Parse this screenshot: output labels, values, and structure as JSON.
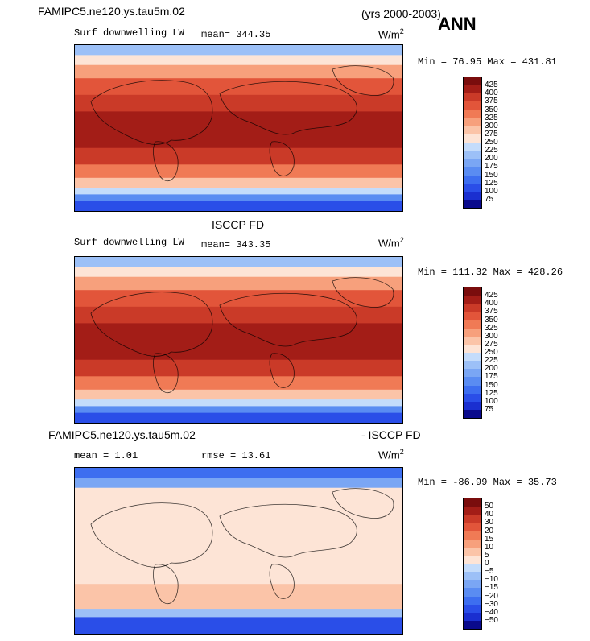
{
  "header": {
    "case_name": "FAMIPC5.ne120.ys.tau5m.02",
    "years": "(yrs 2000-2003)",
    "season": "ANN"
  },
  "panels": [
    {
      "title": "",
      "variable": "Surf downwelling LW",
      "stat_line": "mean= 344.35",
      "units_base": "W/m",
      "units_exp": "2",
      "minmax": "Min =  76.95 Max = 431.81",
      "colorbar_labels": [
        "425",
        "400",
        "375",
        "350",
        "325",
        "300",
        "275",
        "250",
        "225",
        "200",
        "175",
        "150",
        "125",
        "100",
        "75"
      ]
    },
    {
      "title": "ISCCP FD",
      "variable": "Surf downwelling LW",
      "stat_line": "mean= 343.35",
      "units_base": "W/m",
      "units_exp": "2",
      "minmax": "Min = 111.32 Max = 428.26",
      "colorbar_labels": [
        "425",
        "400",
        "375",
        "350",
        "325",
        "300",
        "275",
        "250",
        "225",
        "200",
        "175",
        "150",
        "125",
        "100",
        "75"
      ]
    },
    {
      "title_left": "FAMIPC5.ne120.ys.tau5m.02",
      "title_right": "- ISCCP FD",
      "mean_line": "mean =    1.01",
      "rmse_line": "rmse =   13.61",
      "units_base": "W/m",
      "units_exp": "2",
      "minmax": "Min = -86.99 Max =  35.73",
      "colorbar_labels": [
        "50",
        "40",
        "30",
        "20",
        "15",
        "10",
        "5",
        "0",
        "−5",
        "−10",
        "−15",
        "−20",
        "−30",
        "−40",
        "−50"
      ]
    }
  ],
  "chart_data": [
    {
      "type": "heatmap",
      "title": "Surf downwelling LW",
      "units": "W/m2",
      "mean": 344.35,
      "min": 76.95,
      "max": 431.81,
      "levels": [
        75,
        100,
        125,
        150,
        175,
        200,
        225,
        250,
        275,
        300,
        325,
        350,
        375,
        400,
        425
      ],
      "colors": [
        "#0a0a8c",
        "#1a2fd0",
        "#2a4ee8",
        "#3d6ef0",
        "#5a8cf2",
        "#7aa6f4",
        "#9cc0f7",
        "#c4dcfb",
        "#fde4d6",
        "#fbc4a8",
        "#f7a07c",
        "#f07a55",
        "#e2553a",
        "#ca3a28",
        "#a31d17",
        "#7a0d0d"
      ]
    },
    {
      "type": "heatmap",
      "title": "ISCCP FD",
      "units": "W/m2",
      "mean": 343.35,
      "min": 111.32,
      "max": 428.26,
      "levels": [
        75,
        100,
        125,
        150,
        175,
        200,
        225,
        250,
        275,
        300,
        325,
        350,
        375,
        400,
        425
      ],
      "colors": [
        "#0a0a8c",
        "#1a2fd0",
        "#2a4ee8",
        "#3d6ef0",
        "#5a8cf2",
        "#7aa6f4",
        "#9cc0f7",
        "#c4dcfb",
        "#fde4d6",
        "#fbc4a8",
        "#f7a07c",
        "#f07a55",
        "#e2553a",
        "#ca3a28",
        "#a31d17",
        "#7a0d0d"
      ]
    },
    {
      "type": "heatmap",
      "title": "FAMIPC5.ne120.ys.tau5m.02 - ISCCP FD",
      "units": "W/m2",
      "mean": 1.01,
      "rmse": 13.61,
      "min": -86.99,
      "max": 35.73,
      "levels": [
        -50,
        -40,
        -30,
        -20,
        -15,
        -10,
        -5,
        0,
        5,
        10,
        15,
        20,
        30,
        40,
        50
      ],
      "colors": [
        "#0a0a8c",
        "#1a2fd0",
        "#2a4ee8",
        "#3d6ef0",
        "#5a8cf2",
        "#7aa6f4",
        "#9cc0f7",
        "#c4dcfb",
        "#fde4d6",
        "#fbc4a8",
        "#f7a07c",
        "#f07a55",
        "#e2553a",
        "#ca3a28",
        "#a31d17",
        "#7a0d0d"
      ]
    }
  ]
}
